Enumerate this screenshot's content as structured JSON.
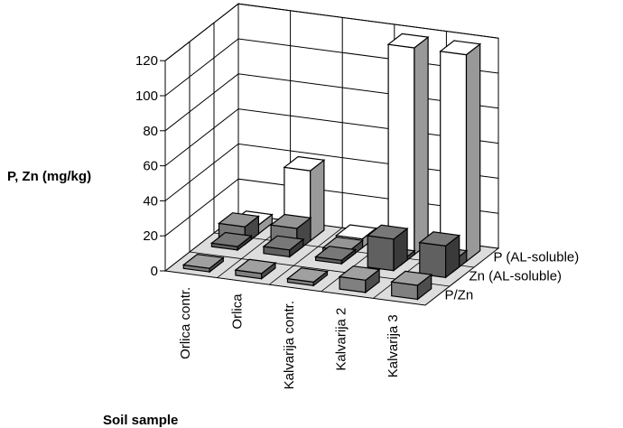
{
  "chart_data": {
    "type": "bar",
    "subtype": "3d-column",
    "ylabel": "P, Zn (mg/kg)",
    "xlabel": "Soil sample",
    "ylim": [
      0,
      120
    ],
    "yticks": [
      0,
      20,
      40,
      60,
      80,
      100,
      120
    ],
    "grid": true,
    "categories": [
      "Orlica contr.",
      "Orlica",
      "Kalvarija contr.",
      "Kalvarija 2",
      "Kalvarija 3"
    ],
    "series": [
      {
        "name": "P/Zn",
        "values": [
          2,
          3,
          2,
          7,
          8
        ],
        "color": "#808080"
      },
      {
        "name": "Zn (AL-soluble)",
        "values": [
          2,
          4,
          2,
          18,
          18
        ],
        "color": "#606060"
      },
      {
        "name": "P (AL-soluble)",
        "values": [
          10,
          13,
          4,
          2,
          6
        ],
        "color": "#777777"
      }
    ],
    "series_front": [
      {
        "name": "P (AL-soluble)",
        "values": [
          5,
          40,
          5,
          118,
          118
        ],
        "color": "#ffffff"
      }
    ]
  }
}
